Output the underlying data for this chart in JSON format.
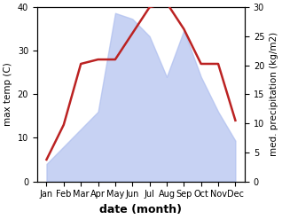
{
  "months": [
    "Jan",
    "Feb",
    "Mar",
    "Apr",
    "May",
    "Jun",
    "Jul",
    "Aug",
    "Sep",
    "Oct",
    "Nov",
    "Dec"
  ],
  "temperature": [
    5,
    13,
    27,
    28,
    28,
    34,
    40,
    41,
    35,
    27,
    27,
    14
  ],
  "precipitation": [
    3,
    6,
    9,
    12,
    29,
    28,
    25,
    18,
    26,
    18,
    12,
    7
  ],
  "temp_color": "#bb2222",
  "precip_color": "#aabbee",
  "precip_alpha": 0.65,
  "ylabel_left": "max temp (C)",
  "ylabel_right": "med. precipitation (kg/m2)",
  "xlabel": "date (month)",
  "ylim_left": [
    0,
    40
  ],
  "ylim_right": [
    0,
    30
  ],
  "yticks_left": [
    0,
    10,
    20,
    30,
    40
  ],
  "yticks_right": [
    0,
    5,
    10,
    15,
    20,
    25,
    30
  ],
  "label_fontsize": 7.5,
  "tick_fontsize": 7.0,
  "xlabel_fontsize": 9,
  "linewidth": 1.8
}
